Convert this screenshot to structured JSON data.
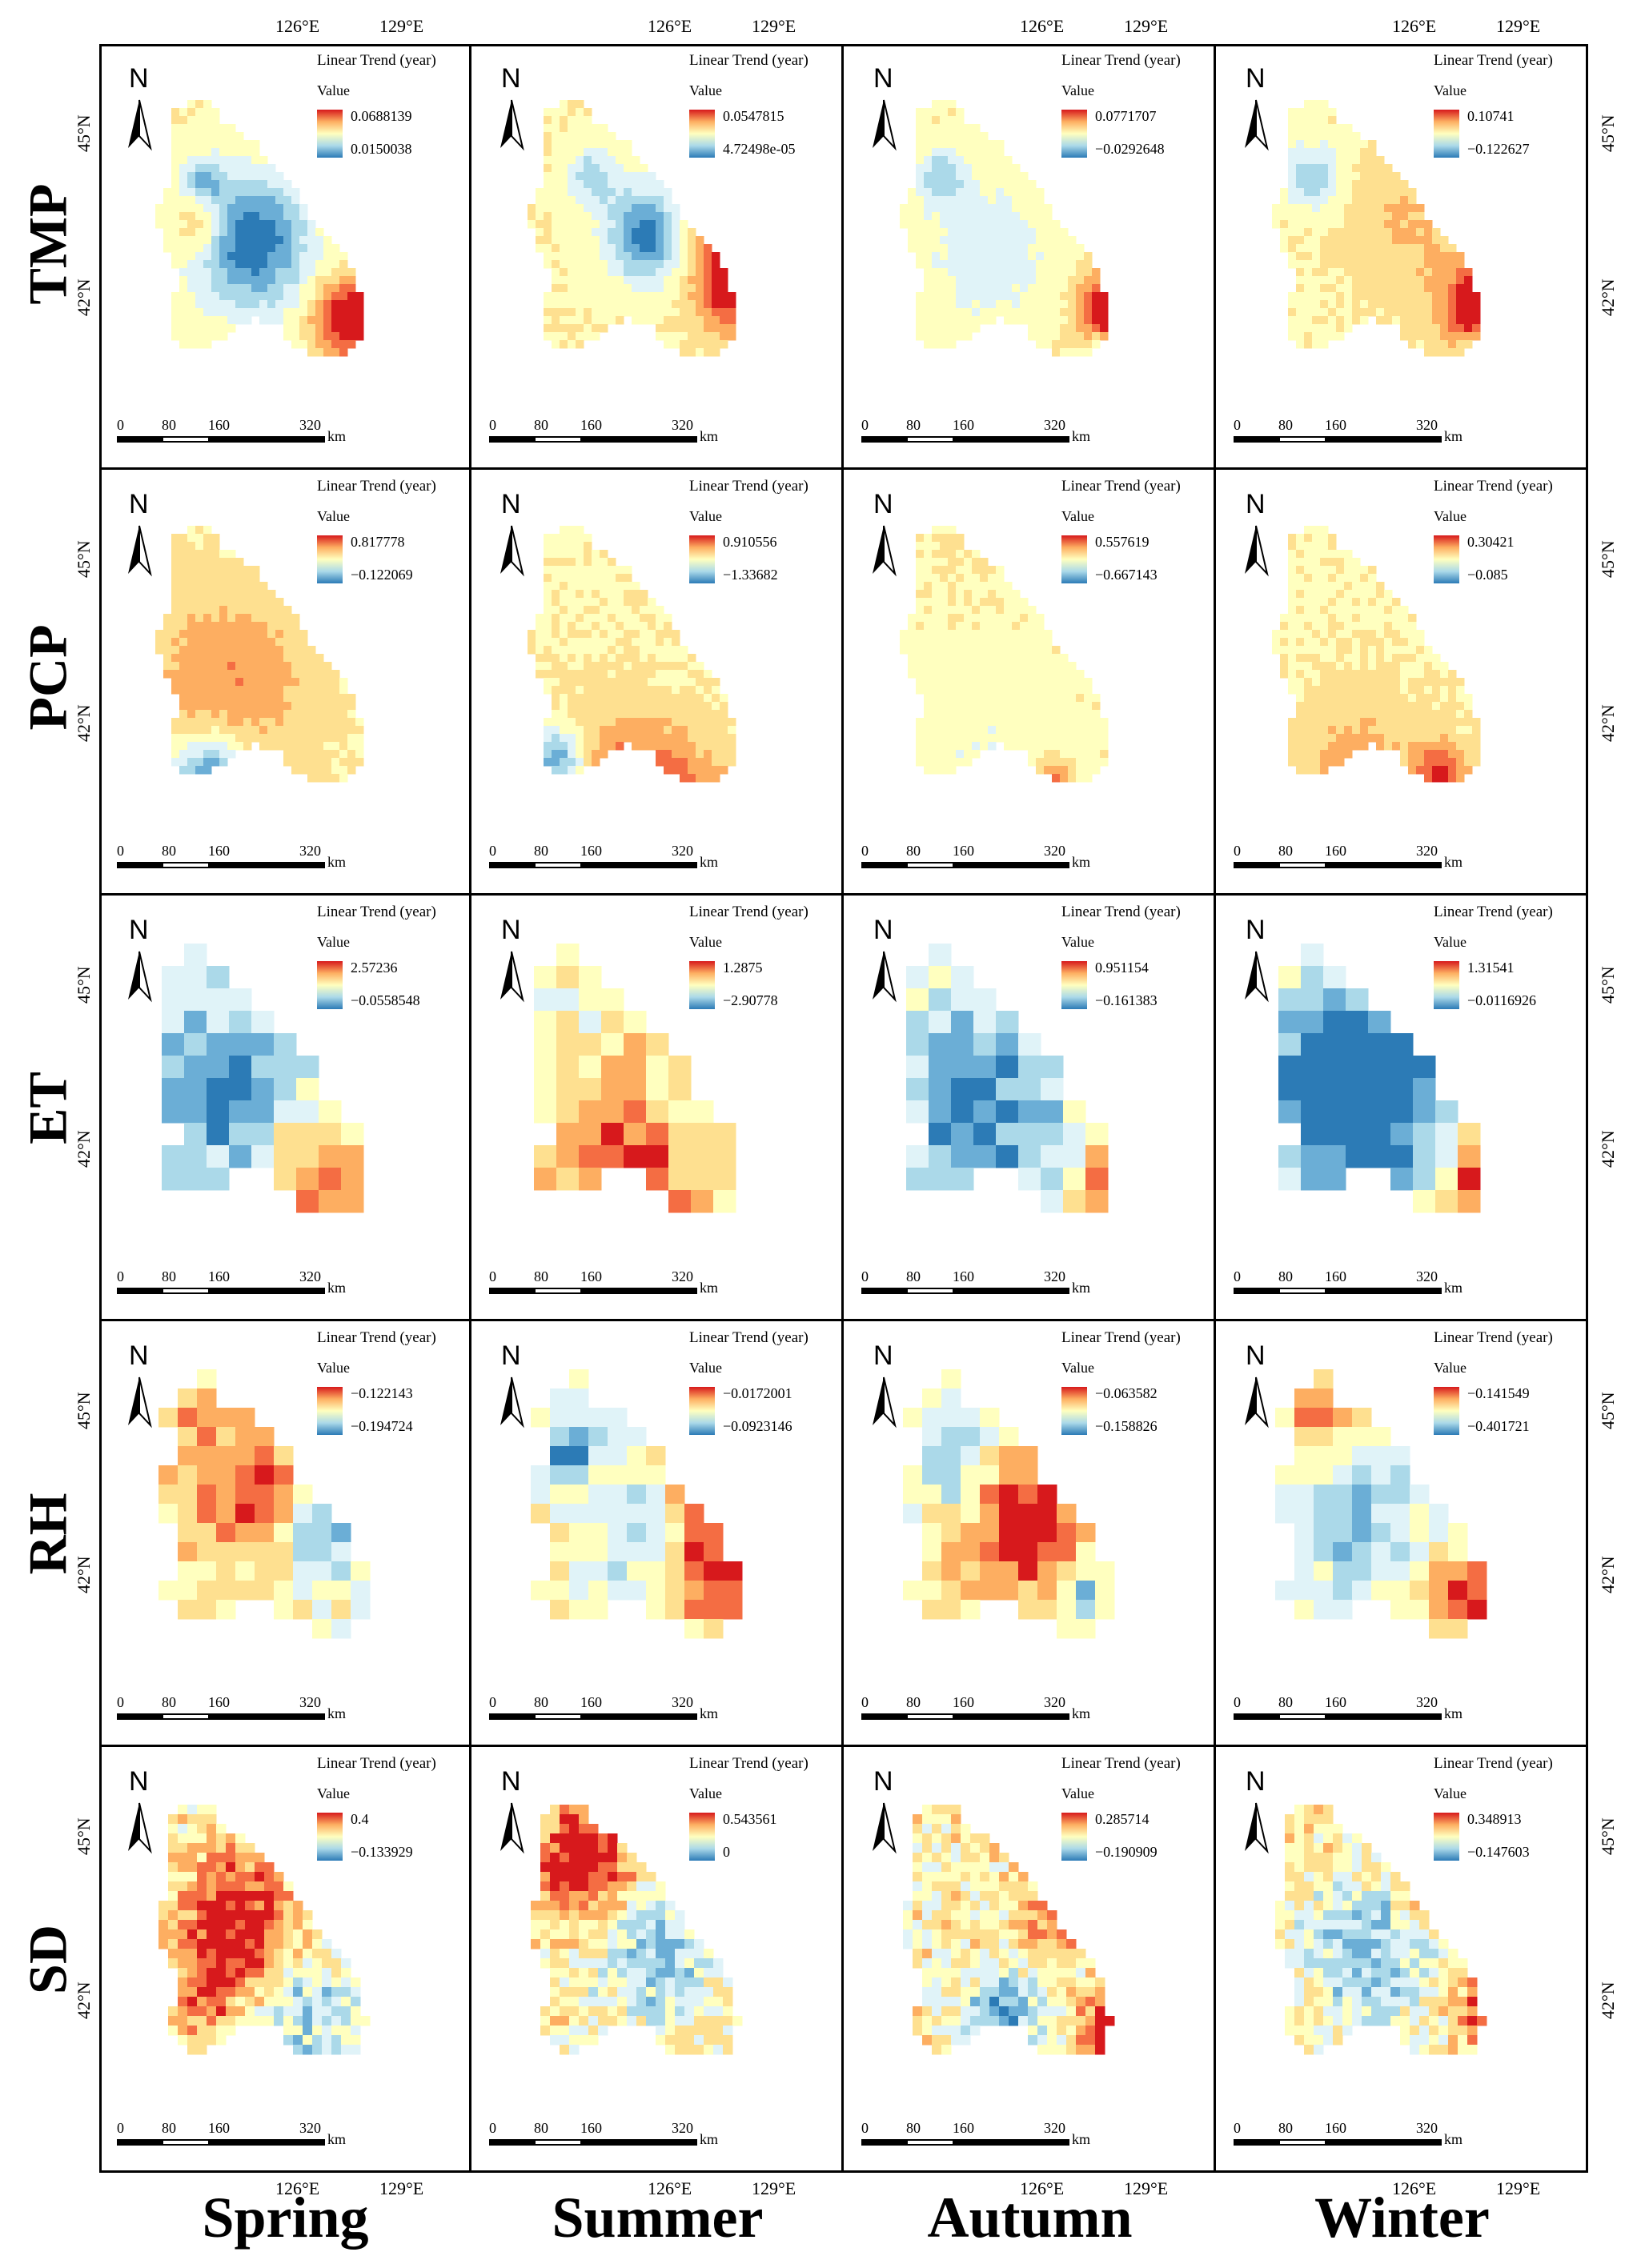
{
  "figure": {
    "rows": [
      {
        "label": "TMP"
      },
      {
        "label": "PCP"
      },
      {
        "label": "ET"
      },
      {
        "label": "RH"
      },
      {
        "label": "SD"
      }
    ],
    "columns": [
      {
        "label": "Spring"
      },
      {
        "label": "Summer"
      },
      {
        "label": "Autumn"
      },
      {
        "label": "Winter"
      }
    ],
    "lon_ticks": [
      "126°E",
      "129°E"
    ],
    "lat_ticks": [
      "45°N",
      "42°N"
    ],
    "legend_title": "Linear Trend  (year)",
    "legend_subtitle": "Value",
    "north_label": "N",
    "scale": {
      "labels": [
        "0",
        "80",
        "160",
        "320"
      ],
      "unit": "km"
    },
    "colors": {
      "high": "#d7191c",
      "mid": "#ffffbf",
      "low": "#2c7bb6"
    },
    "panels": [
      [
        {
          "max": "0.0688139",
          "min": "0.0150038"
        },
        {
          "max": "0.0547815",
          "min": "4.72498e-05"
        },
        {
          "max": "0.0771707",
          "min": "−0.0292648"
        },
        {
          "max": "0.10741",
          "min": "−0.122627"
        }
      ],
      [
        {
          "max": "0.817778",
          "min": "−0.122069"
        },
        {
          "max": "0.910556",
          "min": "−1.33682"
        },
        {
          "max": "0.557619",
          "min": "−0.667143"
        },
        {
          "max": "0.30421",
          "min": "−0.085"
        }
      ],
      [
        {
          "max": "2.57236",
          "min": "−0.0558548"
        },
        {
          "max": "1.2875",
          "min": "−2.90778"
        },
        {
          "max": "0.951154",
          "min": "−0.161383"
        },
        {
          "max": "1.31541",
          "min": "−0.0116926"
        }
      ],
      [
        {
          "max": "−0.122143",
          "min": "−0.194724"
        },
        {
          "max": "−0.0172001",
          "min": "−0.0923146"
        },
        {
          "max": "−0.063582",
          "min": "−0.158826"
        },
        {
          "max": "−0.141549",
          "min": "−0.401721"
        }
      ],
      [
        {
          "max": "0.4",
          "min": "−0.133929"
        },
        {
          "max": "0.543561",
          "min": "0"
        },
        {
          "max": "0.285714",
          "min": "−0.190909"
        },
        {
          "max": "0.348913",
          "min": "−0.147603"
        }
      ]
    ]
  }
}
